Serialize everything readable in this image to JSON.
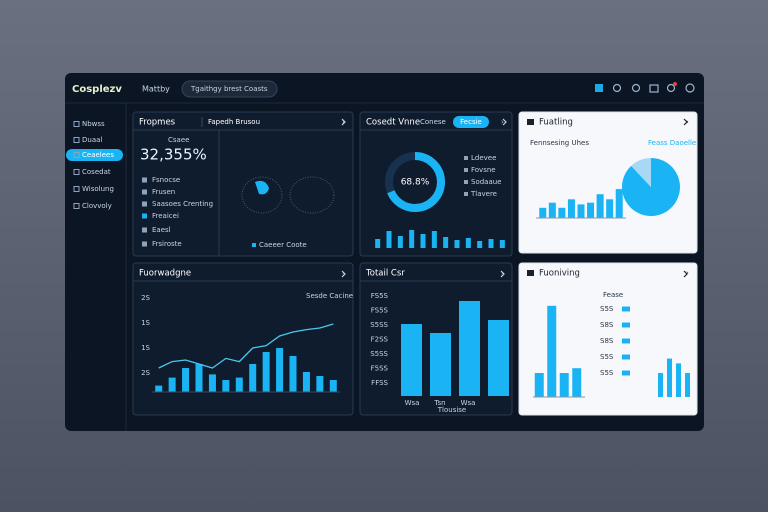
{
  "header": {
    "logo": "Cosplezv",
    "nav": "Mattby",
    "search": "Tgaithgy brest Coasts"
  },
  "sidebar": {
    "items": [
      "Nbwss",
      "Duaal",
      "Ceaelees",
      "Cosedat",
      "Wisolung",
      "Clovvoly"
    ],
    "active": 2
  },
  "kpi_panel": {
    "title": "Fropmes",
    "tab": "Fapedh Brusou",
    "caption": "Csaee",
    "kpi": "32,355%",
    "list": [
      "Fsnocse",
      "Frusen",
      "Saasoes Crenting",
      "Freaicei",
      "Eaesl",
      "Frsiroste"
    ],
    "legend": "Caeeer Coote"
  },
  "donut_panel": {
    "title": "Cosedt Vnne",
    "tab": "Conese",
    "button": "Fecsie",
    "label": "68.8%",
    "value": 68.8,
    "legend": [
      "Ldevee",
      "Fovsne",
      "Sodaaue",
      "Tlavere"
    ],
    "bars": [
      45,
      85,
      60,
      90,
      70,
      85,
      55,
      40,
      50,
      35,
      45,
      40
    ]
  },
  "trend_panel": {
    "title": "Fuatling",
    "subtitle": "Fennsesing Uhes",
    "legend": "Feass Daoelle",
    "bars": [
      30,
      45,
      30,
      55,
      40,
      45,
      70,
      55,
      85
    ],
    "pie": [
      88,
      12
    ]
  },
  "growth_panel": {
    "title": "Fuorwadgne",
    "caption": "Sesde Cacine",
    "ylabels": [
      "2S",
      "1S",
      "1S",
      "2S"
    ],
    "bars": [
      8,
      18,
      30,
      35,
      22,
      15,
      18,
      35,
      50,
      55,
      45,
      25,
      20,
      15
    ],
    "line": [
      30,
      38,
      40,
      35,
      30,
      42,
      38,
      55,
      58,
      70,
      75,
      78,
      80,
      85
    ]
  },
  "total_panel": {
    "title": "Totail Csr",
    "ylabels": [
      "FS5S",
      "FS5S",
      "S5SS",
      "F2SS",
      "S5SS",
      "F5SS",
      "FFSS"
    ],
    "xlabels": [
      "Wsa",
      "Tsn",
      "Wsa"
    ],
    "caption": "Tlousise",
    "bars": [
      72,
      63,
      95,
      76
    ]
  },
  "ranking_panel": {
    "title": "Fuoniving",
    "header": "Fease",
    "rows": [
      "S5S",
      "S8S",
      "S8S",
      "S5S",
      "S5S"
    ],
    "bars": [
      25,
      95,
      25,
      30
    ],
    "side_bars": [
      25,
      40,
      35,
      25
    ]
  }
}
